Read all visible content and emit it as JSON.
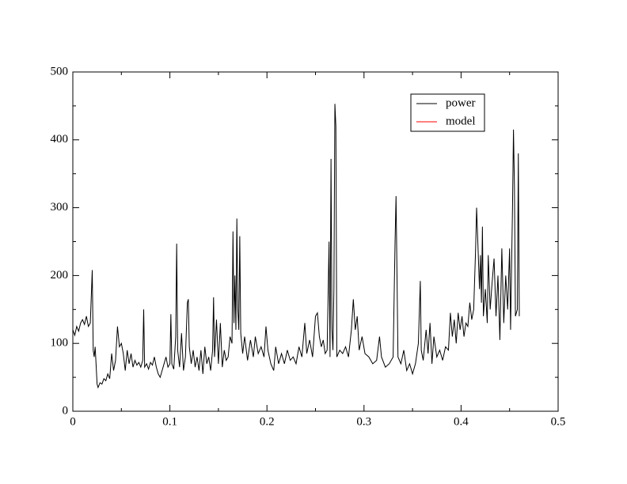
{
  "chart_data": {
    "type": "line",
    "xlim": [
      0,
      0.5
    ],
    "xticks": [
      0,
      0.1,
      0.2,
      0.3,
      0.4,
      0.5
    ],
    "xminorticks": [
      0.05,
      0.15,
      0.25,
      0.35,
      0.45
    ],
    "ylim": [
      0,
      500
    ],
    "yticks": [
      0,
      100,
      200,
      300,
      400,
      500
    ],
    "yminorticks": [
      50,
      150,
      250,
      350,
      450
    ],
    "legend": "upper right",
    "series": [
      {
        "name": "power",
        "color": "#000000",
        "x": [
          0.0,
          0.002,
          0.004,
          0.006,
          0.008,
          0.01,
          0.012,
          0.014,
          0.016,
          0.018,
          0.02,
          0.021,
          0.022,
          0.023,
          0.025,
          0.026,
          0.028,
          0.03,
          0.032,
          0.034,
          0.036,
          0.038,
          0.04,
          0.042,
          0.044,
          0.046,
          0.048,
          0.05,
          0.052,
          0.054,
          0.056,
          0.058,
          0.06,
          0.062,
          0.064,
          0.066,
          0.068,
          0.07,
          0.072,
          0.073,
          0.074,
          0.076,
          0.078,
          0.08,
          0.082,
          0.084,
          0.086,
          0.088,
          0.09,
          0.092,
          0.094,
          0.096,
          0.098,
          0.1,
          0.101,
          0.102,
          0.104,
          0.106,
          0.107,
          0.108,
          0.11,
          0.112,
          0.114,
          0.116,
          0.118,
          0.119,
          0.12,
          0.122,
          0.124,
          0.126,
          0.128,
          0.13,
          0.132,
          0.134,
          0.136,
          0.138,
          0.14,
          0.142,
          0.144,
          0.145,
          0.146,
          0.148,
          0.15,
          0.152,
          0.154,
          0.156,
          0.158,
          0.16,
          0.162,
          0.164,
          0.165,
          0.166,
          0.167,
          0.168,
          0.169,
          0.17,
          0.171,
          0.172,
          0.173,
          0.175,
          0.177,
          0.18,
          0.183,
          0.186,
          0.188,
          0.191,
          0.194,
          0.197,
          0.199,
          0.201,
          0.204,
          0.207,
          0.209,
          0.212,
          0.215,
          0.218,
          0.221,
          0.224,
          0.227,
          0.23,
          0.233,
          0.236,
          0.239,
          0.241,
          0.244,
          0.247,
          0.25,
          0.252,
          0.254,
          0.256,
          0.258,
          0.26,
          0.262,
          0.264,
          0.265,
          0.266,
          0.267,
          0.268,
          0.269,
          0.27,
          0.271,
          0.272,
          0.275,
          0.278,
          0.281,
          0.284,
          0.287,
          0.289,
          0.291,
          0.293,
          0.295,
          0.298,
          0.301,
          0.305,
          0.309,
          0.313,
          0.316,
          0.318,
          0.322,
          0.326,
          0.33,
          0.332,
          0.333,
          0.334,
          0.335,
          0.338,
          0.341,
          0.344,
          0.347,
          0.35,
          0.353,
          0.356,
          0.358,
          0.359,
          0.361,
          0.364,
          0.366,
          0.368,
          0.37,
          0.372,
          0.375,
          0.378,
          0.381,
          0.384,
          0.387,
          0.389,
          0.391,
          0.393,
          0.395,
          0.397,
          0.399,
          0.401,
          0.403,
          0.405,
          0.407,
          0.409,
          0.411,
          0.413,
          0.415,
          0.416,
          0.417,
          0.419,
          0.42,
          0.421,
          0.422,
          0.423,
          0.425,
          0.427,
          0.428,
          0.43,
          0.432,
          0.434,
          0.436,
          0.438,
          0.44,
          0.442,
          0.444,
          0.446,
          0.448,
          0.45,
          0.451,
          0.453,
          0.454,
          0.455,
          0.456,
          0.458,
          0.459,
          0.46
        ],
        "values": [
          120,
          112,
          125,
          118,
          130,
          135,
          128,
          140,
          125,
          130,
          208,
          90,
          80,
          95,
          40,
          35,
          42,
          40,
          48,
          45,
          55,
          48,
          85,
          60,
          75,
          125,
          95,
          100,
          85,
          60,
          90,
          70,
          85,
          65,
          75,
          68,
          72,
          65,
          75,
          150,
          65,
          70,
          62,
          72,
          68,
          80,
          65,
          55,
          50,
          60,
          70,
          80,
          65,
          70,
          143,
          70,
          62,
          110,
          247,
          90,
          65,
          115,
          60,
          80,
          160,
          165,
          95,
          70,
          90,
          65,
          80,
          60,
          90,
          55,
          95,
          70,
          80,
          60,
          90,
          168,
          80,
          135,
          70,
          130,
          65,
          90,
          75,
          80,
          110,
          100,
          265,
          130,
          200,
          120,
          284,
          150,
          120,
          258,
          115,
          85,
          110,
          75,
          105,
          80,
          110,
          85,
          95,
          80,
          125,
          90,
          70,
          60,
          95,
          70,
          85,
          70,
          90,
          75,
          80,
          70,
          95,
          80,
          130,
          85,
          105,
          80,
          140,
          145,
          110,
          95,
          105,
          85,
          90,
          250,
          80,
          372,
          120,
          90,
          180,
          453,
          420,
          80,
          90,
          85,
          95,
          80,
          120,
          165,
          120,
          140,
          90,
          110,
          85,
          80,
          70,
          75,
          110,
          80,
          65,
          70,
          80,
          250,
          317,
          200,
          80,
          70,
          90,
          60,
          70,
          55,
          70,
          100,
          192,
          90,
          75,
          120,
          85,
          130,
          70,
          110,
          80,
          90,
          75,
          95,
          90,
          145,
          110,
          135,
          100,
          145,
          120,
          140,
          110,
          130,
          125,
          160,
          135,
          150,
          240,
          300,
          260,
          180,
          230,
          160,
          272,
          140,
          180,
          130,
          230,
          150,
          190,
          225,
          140,
          200,
          105,
          240,
          130,
          200,
          150,
          240,
          120,
          300,
          415,
          330,
          140,
          150,
          380,
          140
        ]
      },
      {
        "name": "model",
        "color": "#ff0000",
        "x": [],
        "values": []
      }
    ]
  }
}
